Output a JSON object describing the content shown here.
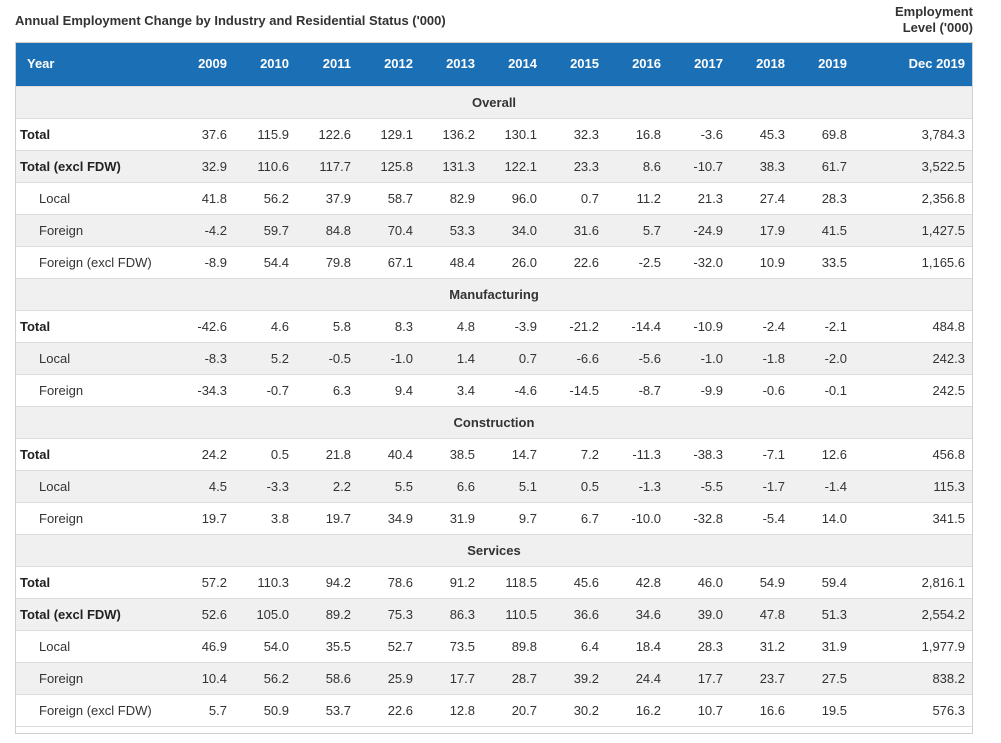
{
  "title": "Annual Employment Change by Industry and Residential Status ('000)",
  "side_note": {
    "line1": "Employment",
    "line2": "Level ('000)"
  },
  "header": {
    "year_label": "Year",
    "years": [
      "2009",
      "2010",
      "2011",
      "2012",
      "2013",
      "2014",
      "2015",
      "2016",
      "2017",
      "2018",
      "2019"
    ],
    "level_label": "Dec 2019"
  },
  "sections": [
    {
      "name": "Overall",
      "rows": [
        {
          "label": "Total",
          "values": [
            "37.6",
            "115.9",
            "122.6",
            "129.1",
            "136.2",
            "130.1",
            "32.3",
            "16.8",
            "-3.6",
            "45.3",
            "69.8"
          ],
          "level": "3,784.3"
        },
        {
          "label": "Total (excl FDW)",
          "values": [
            "32.9",
            "110.6",
            "117.7",
            "125.8",
            "131.3",
            "122.1",
            "23.3",
            "8.6",
            "-10.7",
            "38.3",
            "61.7"
          ],
          "level": "3,522.5"
        },
        {
          "label": "Local",
          "values": [
            "41.8",
            "56.2",
            "37.9",
            "58.7",
            "82.9",
            "96.0",
            "0.7",
            "11.2",
            "21.3",
            "27.4",
            "28.3"
          ],
          "level": "2,356.8"
        },
        {
          "label": "Foreign",
          "values": [
            "-4.2",
            "59.7",
            "84.8",
            "70.4",
            "53.3",
            "34.0",
            "31.6",
            "5.7",
            "-24.9",
            "17.9",
            "41.5"
          ],
          "level": "1,427.5"
        },
        {
          "label": "Foreign (excl FDW)",
          "values": [
            "-8.9",
            "54.4",
            "79.8",
            "67.1",
            "48.4",
            "26.0",
            "22.6",
            "-2.5",
            "-32.0",
            "10.9",
            "33.5"
          ],
          "level": "1,165.6"
        }
      ]
    },
    {
      "name": "Manufacturing",
      "rows": [
        {
          "label": "Total",
          "values": [
            "-42.6",
            "4.6",
            "5.8",
            "8.3",
            "4.8",
            "-3.9",
            "-21.2",
            "-14.4",
            "-10.9",
            "-2.4",
            "-2.1"
          ],
          "level": "484.8"
        },
        {
          "label": "Local",
          "values": [
            "-8.3",
            "5.2",
            "-0.5",
            "-1.0",
            "1.4",
            "0.7",
            "-6.6",
            "-5.6",
            "-1.0",
            "-1.8",
            "-2.0"
          ],
          "level": "242.3"
        },
        {
          "label": "Foreign",
          "values": [
            "-34.3",
            "-0.7",
            "6.3",
            "9.4",
            "3.4",
            "-4.6",
            "-14.5",
            "-8.7",
            "-9.9",
            "-0.6",
            "-0.1"
          ],
          "level": "242.5"
        }
      ]
    },
    {
      "name": "Construction",
      "rows": [
        {
          "label": "Total",
          "values": [
            "24.2",
            "0.5",
            "21.8",
            "40.4",
            "38.5",
            "14.7",
            "7.2",
            "-11.3",
            "-38.3",
            "-7.1",
            "12.6"
          ],
          "level": "456.8"
        },
        {
          "label": "Local",
          "values": [
            "4.5",
            "-3.3",
            "2.2",
            "5.5",
            "6.6",
            "5.1",
            "0.5",
            "-1.3",
            "-5.5",
            "-1.7",
            "-1.4"
          ],
          "level": "115.3"
        },
        {
          "label": "Foreign",
          "values": [
            "19.7",
            "3.8",
            "19.7",
            "34.9",
            "31.9",
            "9.7",
            "6.7",
            "-10.0",
            "-32.8",
            "-5.4",
            "14.0"
          ],
          "level": "341.5"
        }
      ]
    },
    {
      "name": "Services",
      "rows": [
        {
          "label": "Total",
          "values": [
            "57.2",
            "110.3",
            "94.2",
            "78.6",
            "91.2",
            "118.5",
            "45.6",
            "42.8",
            "46.0",
            "54.9",
            "59.4"
          ],
          "level": "2,816.1"
        },
        {
          "label": "Total (excl FDW)",
          "values": [
            "52.6",
            "105.0",
            "89.2",
            "75.3",
            "86.3",
            "110.5",
            "36.6",
            "34.6",
            "39.0",
            "47.8",
            "51.3"
          ],
          "level": "2,554.2"
        },
        {
          "label": "Local",
          "values": [
            "46.9",
            "54.0",
            "35.5",
            "52.7",
            "73.5",
            "89.8",
            "6.4",
            "18.4",
            "28.3",
            "31.2",
            "31.9"
          ],
          "level": "1,977.9"
        },
        {
          "label": "Foreign",
          "values": [
            "10.4",
            "56.2",
            "58.6",
            "25.9",
            "17.7",
            "28.7",
            "39.2",
            "24.4",
            "17.7",
            "23.7",
            "27.5"
          ],
          "level": "838.2"
        },
        {
          "label": "Foreign (excl FDW)",
          "values": [
            "5.7",
            "50.9",
            "53.7",
            "22.6",
            "12.8",
            "20.7",
            "30.2",
            "16.2",
            "10.7",
            "16.6",
            "19.5"
          ],
          "level": "576.3"
        }
      ]
    }
  ]
}
